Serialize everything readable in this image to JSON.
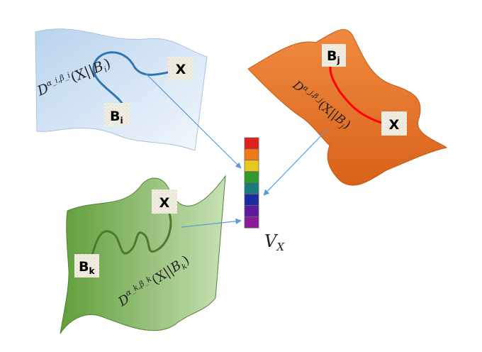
{
  "manifolds": {
    "blue": {
      "node_x": "X",
      "node_b": "B",
      "node_b_sub": "i",
      "divergence": {
        "symbol": "D",
        "superscript": "α_i,β_i",
        "args_pre": "(X",
        "sep": "||",
        "args_b": "B",
        "args_b_sub": "i",
        "args_post": ")"
      },
      "colors": {
        "fill": "#cfe1f3",
        "curve": "#2e75b6"
      }
    },
    "orange": {
      "node_x": "X",
      "node_b": "B",
      "node_b_sub": "j",
      "divergence": {
        "symbol": "D",
        "superscript": "α_j,β_j",
        "args_pre": "(X",
        "sep": "||",
        "args_b": "B",
        "args_b_sub": "j",
        "args_post": ")"
      },
      "colors": {
        "fill": "#ed7d31",
        "curve": "#ff0000"
      }
    },
    "green": {
      "node_x": "X",
      "node_b": "B",
      "node_b_sub": "k",
      "divergence": {
        "symbol": "D",
        "superscript": "α_k,β_k",
        "args_pre": "(X",
        "sep": "||",
        "args_b": "B",
        "args_b_sub": "k",
        "args_post": ")"
      },
      "colors": {
        "fill": "#70ad47",
        "curve": "#4d7a2a"
      }
    }
  },
  "vector": {
    "label": "V",
    "label_sub": "X",
    "colors": [
      "#e0201c",
      "#f07818",
      "#e8c81a",
      "#2e9a2e",
      "#1c7a7a",
      "#1c2ca0",
      "#5a1c9a",
      "#8a1c9a"
    ]
  },
  "arrow_color": "#5b9bd5"
}
